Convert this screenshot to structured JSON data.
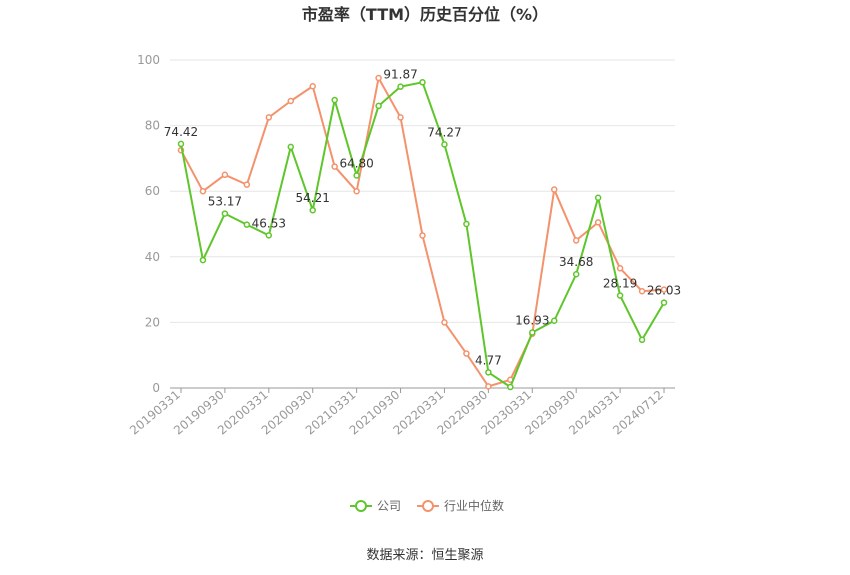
{
  "chart_data": {
    "type": "line",
    "title": "市盈率（TTM）历史百分位（%）",
    "ylim": [
      0,
      100
    ],
    "yticks": [
      0,
      20,
      40,
      60,
      80,
      100
    ],
    "x": [
      "20190331",
      "20190630",
      "20190930",
      "20191231",
      "20200331",
      "20200630",
      "20200930",
      "20201231",
      "20210331",
      "20210630",
      "20210930",
      "20211231",
      "20220331",
      "20220630",
      "20220930",
      "20221231",
      "20230331",
      "20230630",
      "20230930",
      "20231231",
      "20240331",
      "20240630",
      "20240712"
    ],
    "xtick_labels": [
      "20190331",
      "20190930",
      "20200331",
      "20200930",
      "20210331",
      "20210930",
      "20220331",
      "20220930",
      "20230331",
      "20230930",
      "20240331",
      "20240712"
    ],
    "series": [
      {
        "name": "公司",
        "color": "#5ec62a",
        "values": [
          74.42,
          39,
          53.17,
          49.8,
          46.53,
          73.5,
          54.21,
          87.8,
          64.8,
          86,
          91.87,
          93.2,
          74.27,
          50,
          4.77,
          0.3,
          16.93,
          20.5,
          34.68,
          58,
          28.19,
          14.7,
          26.03
        ],
        "labels": {
          "0": "74.42",
          "2": "53.17",
          "4": "46.53",
          "6": "54.21",
          "8": "64.80",
          "10": "91.87",
          "12": "74.27",
          "14": "4.77",
          "16": "16.93",
          "18": "34.68",
          "20": "28.19",
          "22": "26.03"
        }
      },
      {
        "name": "行业中位数",
        "color": "#f4926c",
        "values": [
          72.5,
          60,
          65,
          62,
          82.5,
          87.5,
          92,
          67.5,
          60,
          94.5,
          82.5,
          46.5,
          20,
          10.5,
          0.5,
          2.5,
          16.5,
          60.5,
          45,
          50.5,
          36.5,
          29.5,
          30
        ]
      }
    ],
    "legend_position": "bottom",
    "source": "数据来源：恒生聚源"
  }
}
